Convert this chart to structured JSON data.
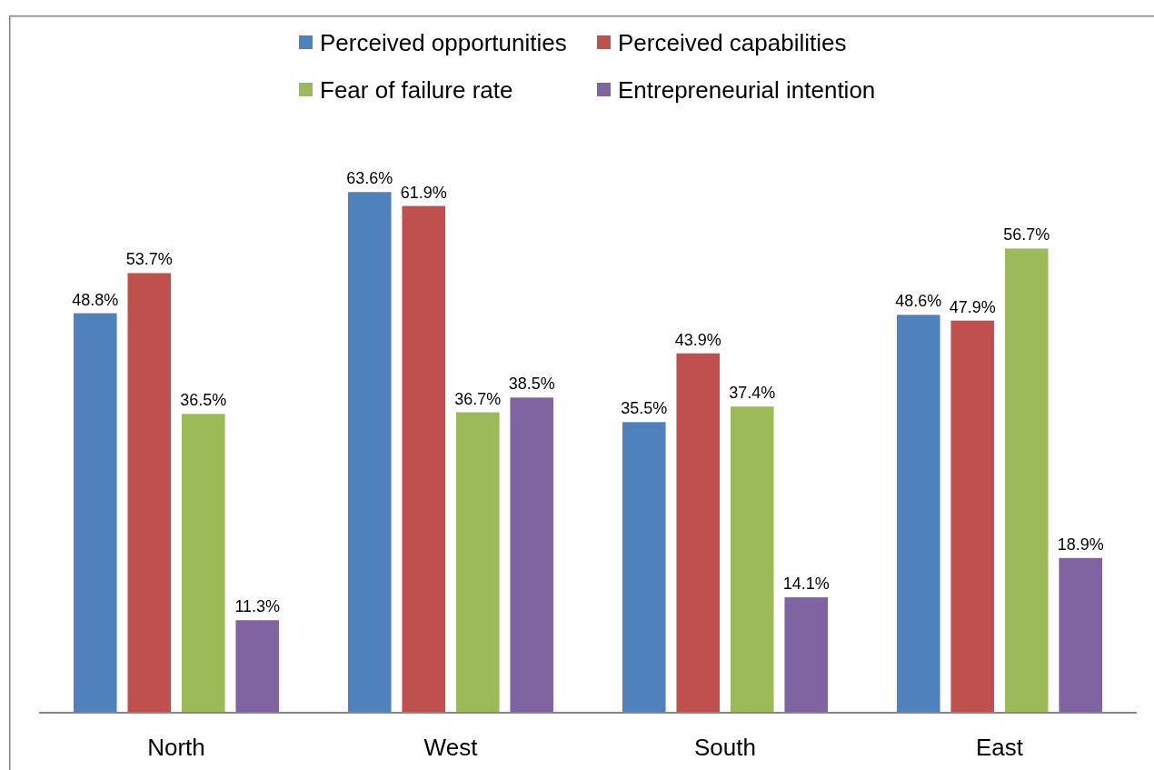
{
  "chart_data": {
    "type": "bar",
    "categories": [
      "North",
      "West",
      "South",
      "East"
    ],
    "series": [
      {
        "name": "Perceived opportunities",
        "color": "#4f81bd",
        "values": [
          48.8,
          63.6,
          35.5,
          48.6
        ],
        "value_labels": [
          "48.8%",
          "63.6%",
          "35.5%",
          "48.6%"
        ]
      },
      {
        "name": "Perceived capabilities",
        "color": "#c0504d",
        "values": [
          53.7,
          61.9,
          43.9,
          47.9
        ],
        "value_labels": [
          "53.7%",
          "61.9%",
          "43.9%",
          "47.9%"
        ]
      },
      {
        "name": "Fear of failure rate",
        "color": "#9bbb59",
        "values": [
          36.5,
          36.7,
          37.4,
          56.7
        ],
        "value_labels": [
          "36.5%",
          "36.7%",
          "37.4%",
          "56.7%"
        ]
      },
      {
        "name": "Entrepreneurial intention",
        "color": "#8064a2",
        "values": [
          11.3,
          38.5,
          14.1,
          18.9
        ],
        "value_labels": [
          "11.3%",
          "38.5%",
          "14.1%",
          "18.9%"
        ]
      }
    ],
    "legend": "top"
  }
}
